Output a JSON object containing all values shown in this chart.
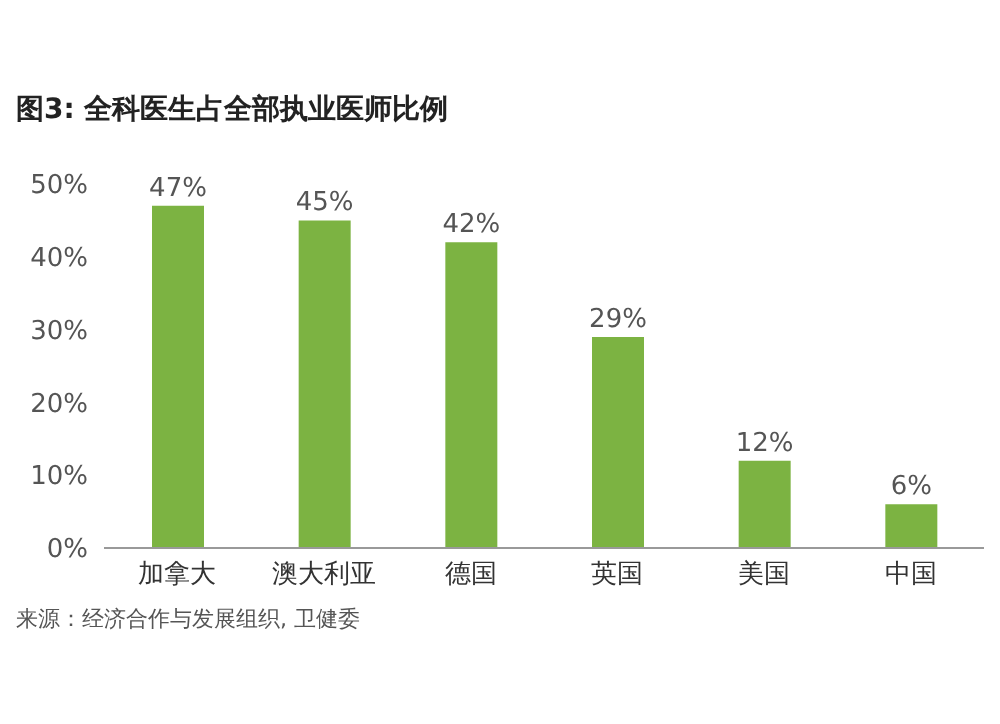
{
  "chart_data": {
    "type": "bar",
    "title": "图3: 全科医生占全部执业医师比例",
    "categories": [
      "加拿大",
      "澳大利亚",
      "德国",
      "英国",
      "美国",
      "中国"
    ],
    "values": [
      47,
      45,
      42,
      29,
      12,
      6
    ],
    "value_labels": [
      "47%",
      "45%",
      "42%",
      "29%",
      "12%",
      "6%"
    ],
    "color": "#7cb342",
    "ylim": [
      0,
      50
    ],
    "yticks": [
      {
        "value": 0,
        "label": "0%"
      },
      {
        "value": 10,
        "label": "10%"
      },
      {
        "value": 20,
        "label": "20%"
      },
      {
        "value": 30,
        "label": "30%"
      },
      {
        "value": 40,
        "label": "40%"
      },
      {
        "value": 50,
        "label": "50%"
      }
    ],
    "grid": false,
    "annotations": [
      "来源：经济合作与发展组织, 卫健委"
    ]
  }
}
